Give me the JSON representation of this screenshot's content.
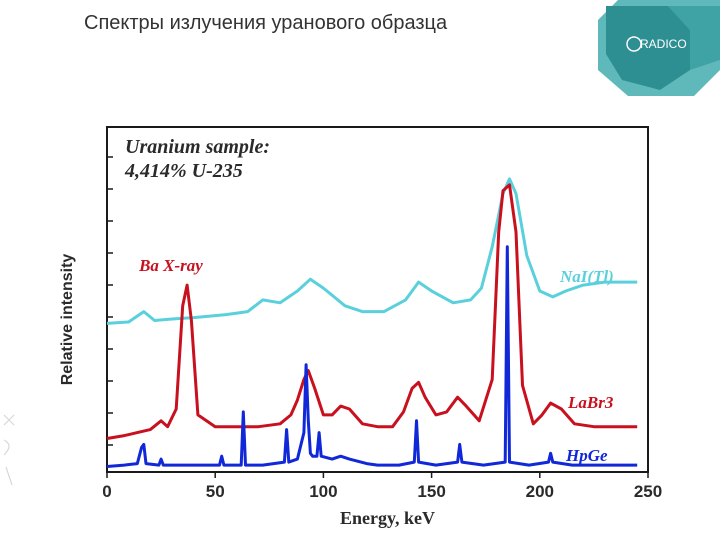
{
  "slide": {
    "title": "Спектры излучения уранового образца"
  },
  "logo": {
    "text": "RADICO",
    "colors": {
      "teal_dark": "#2e8f92",
      "teal_light": "#5fb8ba",
      "teal_mid": "#3fa3a6"
    }
  },
  "chart_data": {
    "type": "line",
    "title": "Uranium sample:",
    "subtitle": "4,414% U-235",
    "xlabel": "Energy, keV",
    "ylabel": "Relative intensity",
    "xlim": [
      0,
      250
    ],
    "x_ticks": [
      0,
      50,
      100,
      150,
      200,
      250
    ],
    "grid": false,
    "y_tick_labels": false,
    "annotations": [
      {
        "text": "Ba X-ray",
        "x": 37
      }
    ],
    "series": [
      {
        "name": "NaI(Tl)",
        "color": "#5ad0dc",
        "points": [
          [
            0,
            0.49
          ],
          [
            10,
            0.495
          ],
          [
            17,
            0.53
          ],
          [
            22,
            0.5
          ],
          [
            30,
            0.505
          ],
          [
            40,
            0.51
          ],
          [
            55,
            0.52
          ],
          [
            65,
            0.53
          ],
          [
            72,
            0.57
          ],
          [
            80,
            0.56
          ],
          [
            88,
            0.6
          ],
          [
            94,
            0.64
          ],
          [
            100,
            0.61
          ],
          [
            110,
            0.55
          ],
          [
            118,
            0.53
          ],
          [
            128,
            0.53
          ],
          [
            138,
            0.57
          ],
          [
            144,
            0.63
          ],
          [
            150,
            0.6
          ],
          [
            160,
            0.56
          ],
          [
            168,
            0.57
          ],
          [
            173,
            0.61
          ],
          [
            178,
            0.75
          ],
          [
            183,
            0.93
          ],
          [
            186,
            0.98
          ],
          [
            189,
            0.93
          ],
          [
            194,
            0.72
          ],
          [
            200,
            0.6
          ],
          [
            206,
            0.58
          ],
          [
            212,
            0.6
          ],
          [
            220,
            0.62
          ],
          [
            230,
            0.63
          ],
          [
            245,
            0.63
          ]
        ]
      },
      {
        "name": "LaBr3",
        "color": "#c8101e",
        "points": [
          [
            0,
            0.1
          ],
          [
            8,
            0.11
          ],
          [
            14,
            0.12
          ],
          [
            20,
            0.13
          ],
          [
            25,
            0.16
          ],
          [
            28,
            0.14
          ],
          [
            32,
            0.2
          ],
          [
            35,
            0.55
          ],
          [
            37,
            0.62
          ],
          [
            39,
            0.5
          ],
          [
            42,
            0.18
          ],
          [
            50,
            0.14
          ],
          [
            60,
            0.14
          ],
          [
            70,
            0.14
          ],
          [
            80,
            0.15
          ],
          [
            85,
            0.18
          ],
          [
            88,
            0.23
          ],
          [
            91,
            0.3
          ],
          [
            93,
            0.33
          ],
          [
            96,
            0.27
          ],
          [
            100,
            0.18
          ],
          [
            104,
            0.18
          ],
          [
            108,
            0.21
          ],
          [
            112,
            0.2
          ],
          [
            118,
            0.15
          ],
          [
            125,
            0.14
          ],
          [
            132,
            0.14
          ],
          [
            137,
            0.19
          ],
          [
            141,
            0.27
          ],
          [
            144,
            0.29
          ],
          [
            147,
            0.24
          ],
          [
            152,
            0.18
          ],
          [
            157,
            0.19
          ],
          [
            162,
            0.24
          ],
          [
            166,
            0.21
          ],
          [
            172,
            0.16
          ],
          [
            178,
            0.3
          ],
          [
            181,
            0.8
          ],
          [
            183,
            0.94
          ],
          [
            186,
            0.96
          ],
          [
            189,
            0.8
          ],
          [
            192,
            0.28
          ],
          [
            197,
            0.15
          ],
          [
            201,
            0.18
          ],
          [
            205,
            0.22
          ],
          [
            210,
            0.2
          ],
          [
            216,
            0.15
          ],
          [
            225,
            0.14
          ],
          [
            240,
            0.14
          ],
          [
            245,
            0.14
          ]
        ]
      },
      {
        "name": "HpGe",
        "color": "#1028d8",
        "points": [
          [
            0,
            0.005
          ],
          [
            8,
            0.01
          ],
          [
            14,
            0.015
          ],
          [
            16,
            0.07
          ],
          [
            17,
            0.08
          ],
          [
            18,
            0.015
          ],
          [
            24,
            0.01
          ],
          [
            25,
            0.03
          ],
          [
            26,
            0.01
          ],
          [
            40,
            0.01
          ],
          [
            52,
            0.01
          ],
          [
            53,
            0.04
          ],
          [
            54,
            0.01
          ],
          [
            62,
            0.01
          ],
          [
            63,
            0.19
          ],
          [
            64,
            0.01
          ],
          [
            72,
            0.01
          ],
          [
            82,
            0.02
          ],
          [
            83,
            0.13
          ],
          [
            84,
            0.02
          ],
          [
            88,
            0.03
          ],
          [
            91,
            0.12
          ],
          [
            92,
            0.35
          ],
          [
            93,
            0.16
          ],
          [
            94,
            0.05
          ],
          [
            95,
            0.04
          ],
          [
            97,
            0.04
          ],
          [
            98,
            0.12
          ],
          [
            99,
            0.04
          ],
          [
            104,
            0.03
          ],
          [
            108,
            0.04
          ],
          [
            112,
            0.03
          ],
          [
            120,
            0.015
          ],
          [
            125,
            0.01
          ],
          [
            135,
            0.01
          ],
          [
            142,
            0.02
          ],
          [
            143,
            0.16
          ],
          [
            144,
            0.02
          ],
          [
            152,
            0.01
          ],
          [
            162,
            0.02
          ],
          [
            163,
            0.08
          ],
          [
            164,
            0.02
          ],
          [
            174,
            0.01
          ],
          [
            184,
            0.02
          ],
          [
            185,
            0.75
          ],
          [
            186,
            0.02
          ],
          [
            195,
            0.01
          ],
          [
            204,
            0.02
          ],
          [
            205,
            0.05
          ],
          [
            206,
            0.02
          ],
          [
            215,
            0.01
          ],
          [
            245,
            0.01
          ]
        ]
      }
    ],
    "series_labels": [
      {
        "series": "NaI(Tl)",
        "text": "NaI(Tl)"
      },
      {
        "series": "LaBr3",
        "text": "LaBr3"
      },
      {
        "series": "HpGe",
        "text": "HpGe"
      }
    ],
    "frame_color": "#1a1a1a",
    "text_color": "#2a2a2a",
    "annotation_color": "#c8101e"
  }
}
